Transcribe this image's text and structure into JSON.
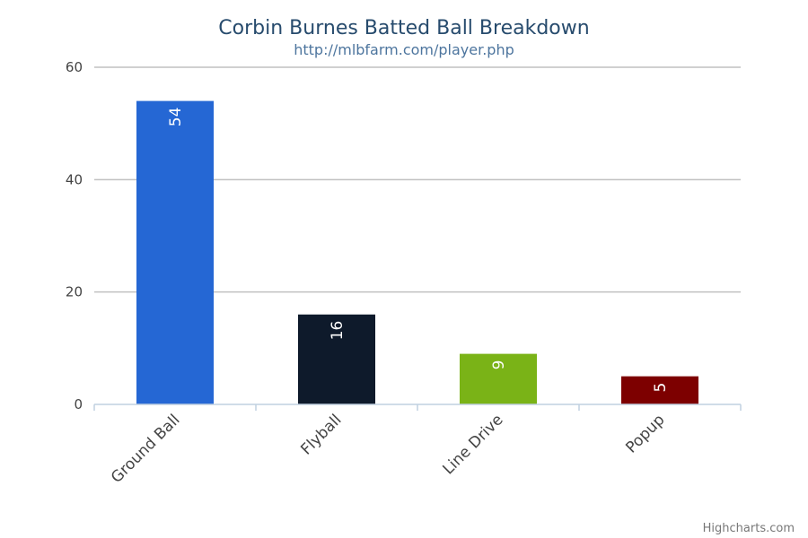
{
  "chart_data": {
    "type": "bar",
    "title": "Corbin Burnes Batted Ball Breakdown",
    "subtitle": "http://mlbfarm.com/player.php",
    "categories": [
      "Ground Ball",
      "Flyball",
      "Line Drive",
      "Popup"
    ],
    "values": [
      54,
      16,
      9,
      5
    ],
    "colors": [
      "#2567d4",
      "#0e1a2b",
      "#7ab317",
      "#7d0000"
    ],
    "ylim": [
      0,
      60
    ],
    "yticks": [
      0,
      20,
      40,
      60
    ],
    "ytick_labels": [
      "0",
      "20",
      "40",
      "60"
    ],
    "data_labels": [
      "54",
      "16",
      "9",
      "5"
    ],
    "grid": true,
    "legend": "none"
  },
  "credit": "Highcharts.com"
}
